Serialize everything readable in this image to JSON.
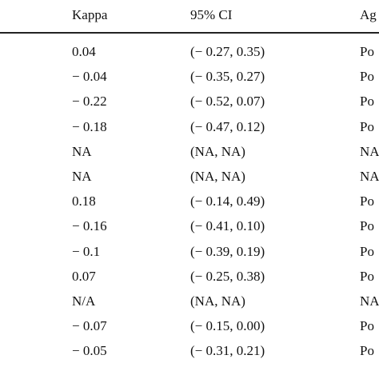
{
  "table": {
    "headers": [
      "Kappa",
      "95% CI",
      "Ag"
    ],
    "rows": [
      {
        "kappa": "0.04",
        "ci": "(− 0.27, 0.35)",
        "agreement": "Po"
      },
      {
        "kappa": "− 0.04",
        "ci": "(− 0.35, 0.27)",
        "agreement": "Po"
      },
      {
        "kappa": "− 0.22",
        "ci": "(− 0.52, 0.07)",
        "agreement": "Po"
      },
      {
        "kappa": "− 0.18",
        "ci": "(− 0.47, 0.12)",
        "agreement": "Po"
      },
      {
        "kappa": "NA",
        "ci": "(NA, NA)",
        "agreement": "NA"
      },
      {
        "kappa": "NA",
        "ci": "(NA, NA)",
        "agreement": "NA"
      },
      {
        "kappa": "0.18",
        "ci": "(− 0.14, 0.49)",
        "agreement": "Po"
      },
      {
        "kappa": "− 0.16",
        "ci": "(− 0.41, 0.10)",
        "agreement": "Po"
      },
      {
        "kappa": "− 0.1",
        "ci": "(− 0.39, 0.19)",
        "agreement": "Po"
      },
      {
        "kappa": "0.07",
        "ci": "(− 0.25, 0.38)",
        "agreement": "Po"
      },
      {
        "kappa": "N/A",
        "ci": "(NA, NA)",
        "agreement": "NA"
      },
      {
        "kappa": "− 0.07",
        "ci": "(− 0.15, 0.00)",
        "agreement": "Po"
      },
      {
        "kappa": "− 0.05",
        "ci": "(− 0.31, 0.21)",
        "agreement": "Po"
      }
    ]
  }
}
